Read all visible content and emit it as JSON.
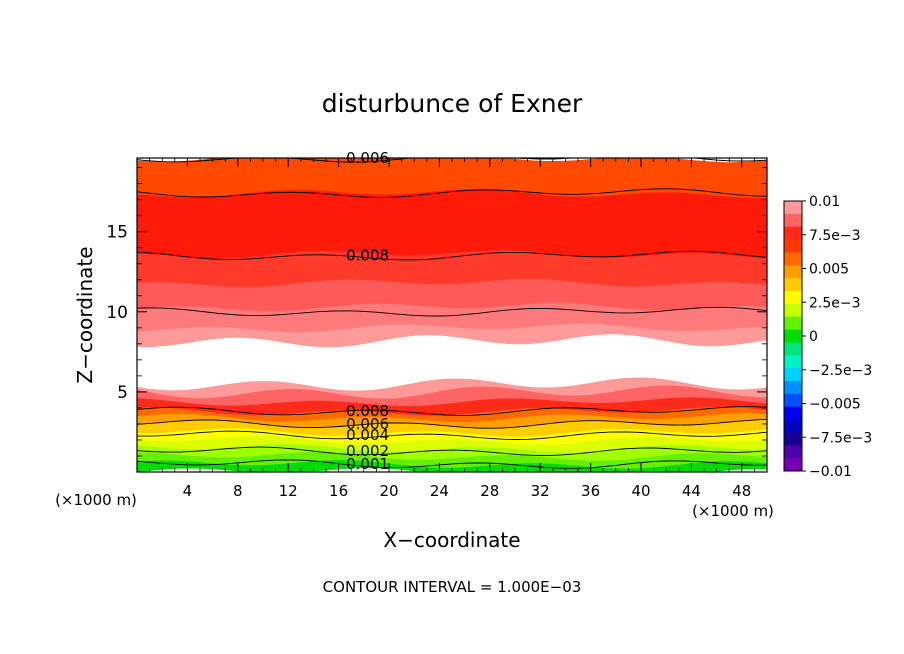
{
  "chart_data": {
    "type": "heatmap",
    "title": "disturbunce of Exner",
    "xlabel": "X−coordinate",
    "ylabel": "Z−coordinate",
    "x_unit_left": "(×1000 m)",
    "x_unit_right": "(×1000 m)",
    "xlim": [
      0,
      50
    ],
    "ylim": [
      0,
      19.6
    ],
    "x_ticks": [
      4,
      8,
      12,
      16,
      20,
      24,
      28,
      32,
      36,
      40,
      44,
      48
    ],
    "y_ticks": [
      5,
      10,
      15
    ],
    "grid": false,
    "footer": "CONTOUR INTERVAL = 1.000E−03",
    "colorbar": {
      "placement": "right",
      "range": [
        -0.01,
        0.01
      ],
      "tick_labels": [
        "0.01",
        "7.5e−3",
        "0.005",
        "2.5e−3",
        "0",
        "−2.5e−3",
        "−0.005",
        "−7.5e−3",
        "−0.01"
      ],
      "tick_values": [
        0.01,
        0.0075,
        0.005,
        0.0025,
        0,
        -0.0025,
        -0.005,
        -0.0075,
        -0.01
      ],
      "levels": [
        {
          "value": 0.01,
          "color": "#ff9a9a"
        },
        {
          "value": 0.009,
          "color": "#ff6464"
        },
        {
          "value": 0.008,
          "color": "#ff2a1a"
        },
        {
          "value": 0.007,
          "color": "#ff3a00"
        },
        {
          "value": 0.006,
          "color": "#ff6a00"
        },
        {
          "value": 0.005,
          "color": "#ffa000"
        },
        {
          "value": 0.004,
          "color": "#ffcc00"
        },
        {
          "value": 0.003,
          "color": "#ffff00"
        },
        {
          "value": 0.002,
          "color": "#c8ff00"
        },
        {
          "value": 0.001,
          "color": "#64f000"
        },
        {
          "value": 0.0,
          "color": "#00dc00"
        },
        {
          "value": -0.001,
          "color": "#00e47a"
        },
        {
          "value": -0.002,
          "color": "#00f0c8"
        },
        {
          "value": -0.003,
          "color": "#00d0ff"
        },
        {
          "value": -0.004,
          "color": "#0090ff"
        },
        {
          "value": -0.005,
          "color": "#0050ff"
        },
        {
          "value": -0.006,
          "color": "#0000f0"
        },
        {
          "value": -0.007,
          "color": "#0000c0"
        },
        {
          "value": -0.008,
          "color": "#1a0090"
        },
        {
          "value": -0.009,
          "color": "#5000a8"
        },
        {
          "value": -0.01,
          "color": "#7800b4"
        }
      ]
    },
    "field_bands": [
      {
        "z_from": 0.0,
        "z_to": 0.5,
        "color": "#00dc00"
      },
      {
        "z_from": 0.5,
        "z_to": 1.0,
        "color": "#64f000"
      },
      {
        "z_from": 1.0,
        "z_to": 1.5,
        "color": "#a0ff00"
      },
      {
        "z_from": 1.5,
        "z_to": 2.0,
        "color": "#dcff00"
      },
      {
        "z_from": 2.0,
        "z_to": 2.5,
        "color": "#ffff00"
      },
      {
        "z_from": 2.5,
        "z_to": 3.0,
        "color": "#ffcc00"
      },
      {
        "z_from": 3.0,
        "z_to": 3.4,
        "color": "#ffa000"
      },
      {
        "z_from": 3.4,
        "z_to": 3.8,
        "color": "#ff6a00"
      },
      {
        "z_from": 3.8,
        "z_to": 4.4,
        "color": "#ff2a1a"
      },
      {
        "z_from": 4.4,
        "z_to": 5.0,
        "color": "#ff6464"
      },
      {
        "z_from": 5.0,
        "z_to": 5.5,
        "color": "#ff9a9a"
      },
      {
        "z_from": 5.5,
        "z_to": 8.2,
        "color": "#ffffff"
      },
      {
        "z_from": 8.2,
        "z_to": 9.0,
        "color": "#ff9a9a"
      },
      {
        "z_from": 9.0,
        "z_to": 10.3,
        "color": "#ff7a7a"
      },
      {
        "z_from": 10.3,
        "z_to": 11.8,
        "color": "#ff5a5a"
      },
      {
        "z_from": 11.8,
        "z_to": 13.6,
        "color": "#ff3a2a"
      },
      {
        "z_from": 13.6,
        "z_to": 17.4,
        "color": "#ff1a0a"
      },
      {
        "z_from": 17.4,
        "z_to": 19.6,
        "color": "#ff4a00"
      }
    ],
    "contours": [
      {
        "value": 0.001,
        "z": 0.5,
        "label": "0.001"
      },
      {
        "value": 0.002,
        "z": 1.3,
        "label": "0.002"
      },
      {
        "value": 0.004,
        "z": 2.3,
        "label": "0.004"
      },
      {
        "value": 0.006,
        "z": 3.0,
        "label": "0.006"
      },
      {
        "value": 0.008,
        "z": 3.8,
        "label": "0.008"
      },
      {
        "value": 0.009,
        "z": 10.0,
        "label": ""
      },
      {
        "value": 0.008,
        "z": 13.5,
        "label": "0.008"
      },
      {
        "value": 0.007,
        "z": 17.4,
        "label": ""
      },
      {
        "value": 0.006,
        "z": 19.6,
        "label": "0.006"
      }
    ]
  }
}
